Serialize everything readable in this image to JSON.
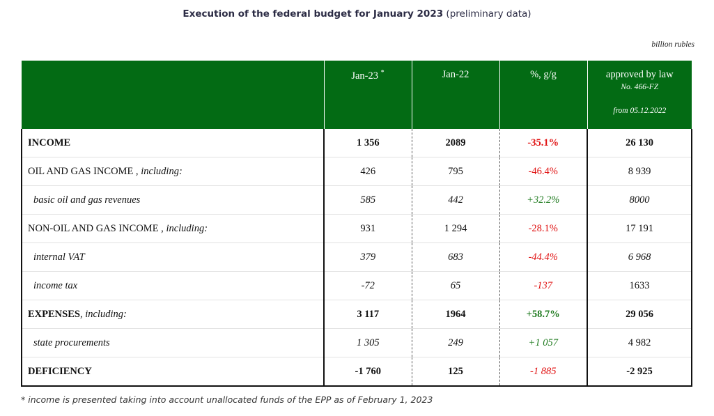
{
  "title": {
    "main": "Execution of the federal budget for January 2023",
    "suffix": "(preliminary data)"
  },
  "units": "billion rubles",
  "headers": {
    "col1": "",
    "jan23": "Jan-23",
    "jan23_mark": "*",
    "jan22": "Jan-22",
    "pct": "%, g/g",
    "law_title": "approved by law",
    "law_no": "No. 466-FZ",
    "law_date": "from 05.12.2022"
  },
  "rows": [
    {
      "label": "INCOME",
      "suffix": "",
      "jan23": "1 356",
      "jan22": "2089",
      "pct": "-35.1%",
      "law": "26 130"
    },
    {
      "label": "OIL AND GAS INCOME ,",
      "suffix": "including:",
      "jan23": "426",
      "jan22": "795",
      "pct": "-46.4%",
      "law": "8 939"
    },
    {
      "label": "basic oil and gas revenues",
      "suffix": "",
      "jan23": "585",
      "jan22": "442",
      "pct": "+32.2%",
      "law": "8000"
    },
    {
      "label": "NON-OIL AND GAS INCOME ,",
      "suffix": "including:",
      "jan23": "931",
      "jan22": "1 294",
      "pct": "-28.1%",
      "law": "17 191"
    },
    {
      "label": "internal VAT",
      "suffix": "",
      "jan23": "379",
      "jan22": "683",
      "pct": "-44.4%",
      "law": "6 968"
    },
    {
      "label": "income tax",
      "suffix": "",
      "jan23": "-72",
      "jan22": "65",
      "pct": "-137",
      "law": "1633"
    },
    {
      "label": "EXPENSES",
      "suffix": ", including:",
      "jan23": "3 117",
      "jan22": "1964",
      "pct": "+58.7%",
      "law": "29 056"
    },
    {
      "label": "state procurements",
      "suffix": "",
      "jan23": "1 305",
      "jan22": "249",
      "pct": "+1 057",
      "law": "4 982"
    },
    {
      "label": "DEFICIENCY",
      "suffix": "",
      "jan23": "-1 760",
      "jan22": "125",
      "pct": "-1 885",
      "law": "-2 925"
    }
  ],
  "colors": {
    "header_bg": "#036b14",
    "negative": "#e01010",
    "positive": "#1e7a1e"
  },
  "footnote": "* income is presented taking into account unallocated funds of the EPP as of February 1, 2023"
}
